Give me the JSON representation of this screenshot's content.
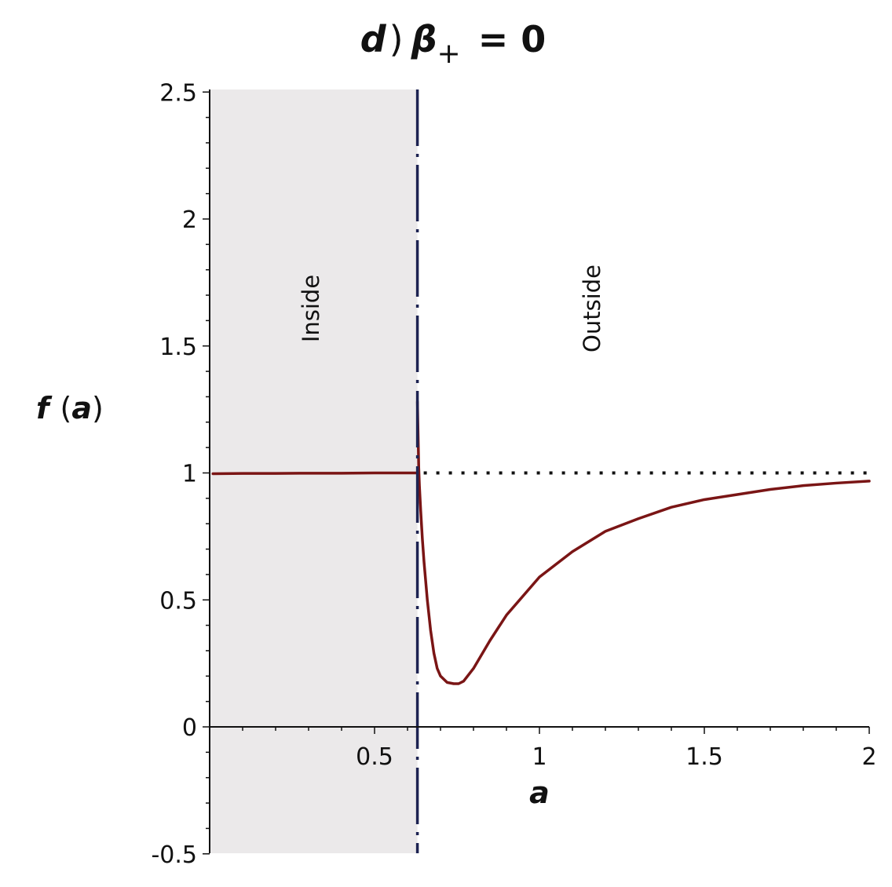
{
  "chart_data": {
    "type": "line",
    "title": {
      "prefix": "d",
      "close_paren": ")",
      "symbol": "β",
      "subscript": "+",
      "rest": " = 0"
    },
    "xlabel": "a",
    "ylabel": {
      "func": "f",
      "open_paren": "(",
      "var": "a",
      "close_paren": ")"
    },
    "xlim": [
      0,
      2
    ],
    "ylim": [
      -0.5,
      2.5
    ],
    "x_ticks": [
      {
        "value": 0.5,
        "label": "0.5"
      },
      {
        "value": 1,
        "label": "1"
      },
      {
        "value": 1.5,
        "label": "1.5"
      },
      {
        "value": 2,
        "label": "2"
      }
    ],
    "y_ticks": [
      {
        "value": -0.5,
        "label": "-0.5"
      },
      {
        "value": 0,
        "label": "0"
      },
      {
        "value": 0.5,
        "label": "0.5"
      },
      {
        "value": 1,
        "label": "1"
      },
      {
        "value": 1.5,
        "label": "1.5"
      },
      {
        "value": 2,
        "label": "2"
      },
      {
        "value": 2.5,
        "label": "2.5"
      }
    ],
    "regions": [
      {
        "label": "Inside",
        "x_range": [
          0,
          0.63
        ],
        "shaded": true,
        "color": "#ebe9ea"
      },
      {
        "label": "Outside",
        "x_range": [
          0.63,
          2
        ],
        "shaded": false
      }
    ],
    "boundary": {
      "x": 0.63,
      "color": "#1d2352",
      "style": "dashed"
    },
    "asymptote": {
      "y": 1,
      "x_range": [
        0.63,
        2
      ],
      "style": "dotted",
      "color": "#111111"
    },
    "series": [
      {
        "color": "#7a1515",
        "x": [
          0.01,
          0.1,
          0.2,
          0.3,
          0.4,
          0.5,
          0.6,
          0.63
        ],
        "y": [
          0.997,
          0.998,
          0.998,
          0.999,
          0.999,
          1.0,
          1.0,
          1.0
        ]
      },
      {
        "color": "#7a1515",
        "x": [
          0.63,
          0.632,
          0.634,
          0.636,
          0.638,
          0.64,
          0.645,
          0.65,
          0.66,
          0.67,
          0.68,
          0.69,
          0.7,
          0.72,
          0.74,
          0.755,
          0.77,
          0.8,
          0.85,
          0.9,
          1.0,
          1.1,
          1.2,
          1.3,
          1.4,
          1.5,
          1.6,
          1.7,
          1.8,
          1.9,
          2.0
        ],
        "y": [
          1.28,
          1.15,
          1.02,
          0.95,
          0.9,
          0.85,
          0.74,
          0.65,
          0.5,
          0.38,
          0.29,
          0.23,
          0.2,
          0.175,
          0.17,
          0.17,
          0.18,
          0.23,
          0.34,
          0.44,
          0.59,
          0.69,
          0.77,
          0.82,
          0.865,
          0.895,
          0.915,
          0.935,
          0.95,
          0.96,
          0.968
        ]
      }
    ]
  }
}
